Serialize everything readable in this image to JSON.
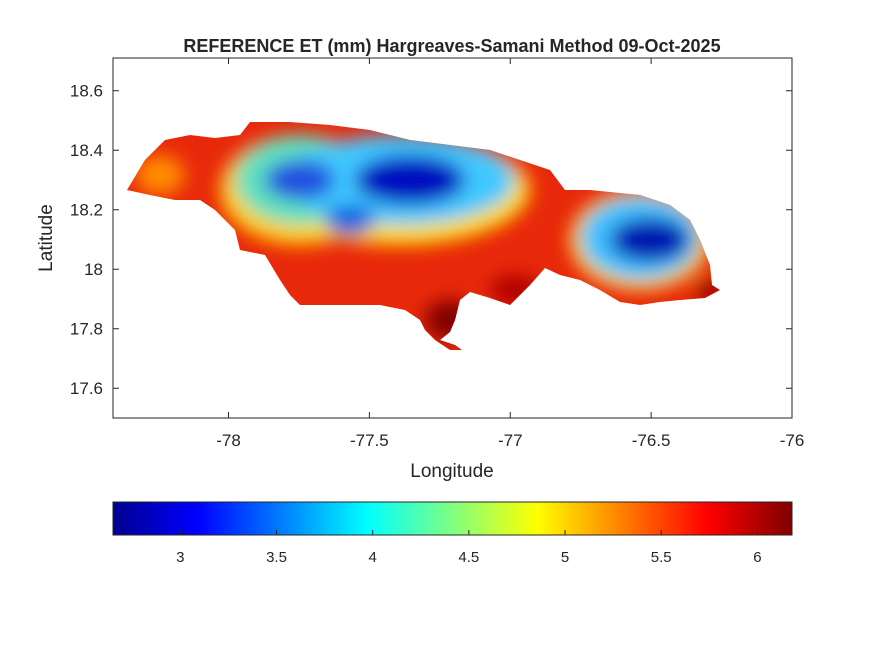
{
  "chart_data": {
    "type": "heatmap",
    "title": "REFERENCE ET (mm) Hargreaves-Samani Method  09-Oct-2025",
    "xlabel": "Longitude",
    "ylabel": "Latitude",
    "xlim": [
      -78.41,
      -76
    ],
    "ylim": [
      17.5,
      18.71
    ],
    "xticks": [
      -78,
      -77.5,
      -77,
      -76.5,
      -76
    ],
    "xtick_labels": [
      "-78",
      "-77.5",
      "-77",
      "-76.5",
      "-76"
    ],
    "yticks": [
      17.6,
      17.8,
      18,
      18.2,
      18.4,
      18.6
    ],
    "ytick_labels": [
      "17.6",
      "17.8",
      "18",
      "18.2",
      "18.4",
      "18.6"
    ],
    "colorbar": {
      "colormap": "jet",
      "location": "southoutside",
      "clim": [
        2.65,
        6.18
      ],
      "ticks": [
        3,
        3.5,
        4,
        4.5,
        5,
        5.5,
        6
      ],
      "tick_labels": [
        "3",
        "3.5",
        "4",
        "4.5",
        "5",
        "5.5",
        "6"
      ]
    },
    "grid": false,
    "summary": {
      "low_values_region": "central and eastern interior",
      "high_values_region": "southern coast"
    }
  }
}
